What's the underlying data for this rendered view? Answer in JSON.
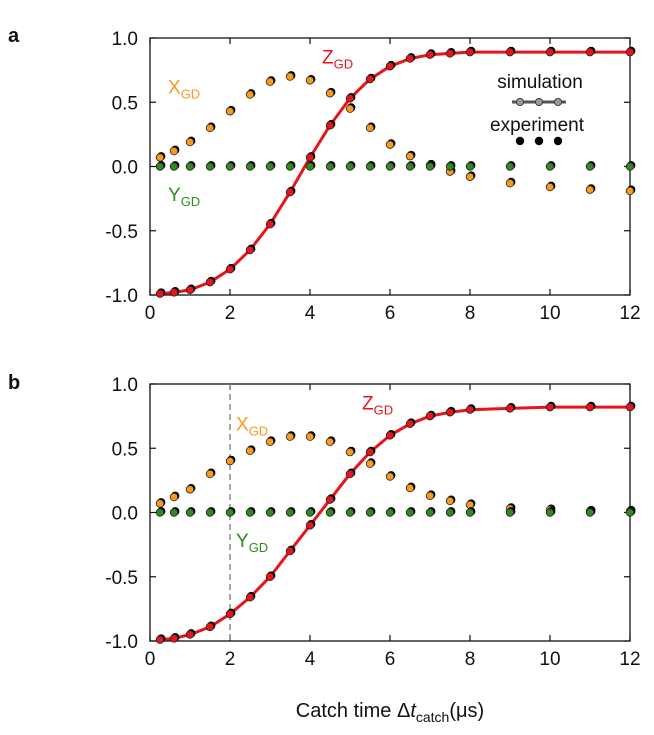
{
  "chart_data": [
    {
      "panel": "a",
      "type": "scatter",
      "xlim": [
        0,
        12
      ],
      "ylim": [
        -1.0,
        1.0
      ],
      "xticks": [
        0,
        2,
        4,
        6,
        8,
        10,
        12
      ],
      "xtick_labels": [
        "0",
        "2",
        "4",
        "6",
        "8",
        "10",
        "12"
      ],
      "yticks": [
        1.0,
        0.5,
        0.0,
        -0.5,
        -1.0
      ],
      "ytick_labels": [
        "1.0",
        "0.5",
        "0.0",
        "-0.5",
        "-1.0"
      ],
      "legend": {
        "placement": "top-right",
        "simulation_label": "simulation",
        "experiment_label": "experiment"
      },
      "series": [
        {
          "name": "Z",
          "subscript": "GD",
          "color": "#e8141c",
          "line": true,
          "x": [
            0.25,
            0.6,
            1.0,
            1.5,
            2.0,
            2.5,
            3.0,
            3.5,
            4.0,
            4.5,
            5.0,
            5.5,
            6.0,
            6.5,
            7.0,
            7.5,
            8.0,
            9.0,
            10.0,
            11.0,
            12.0
          ],
          "y": [
            -0.99,
            -0.98,
            -0.96,
            -0.9,
            -0.8,
            -0.65,
            -0.45,
            -0.2,
            0.07,
            0.32,
            0.53,
            0.68,
            0.78,
            0.84,
            0.87,
            0.88,
            0.89,
            0.89,
            0.89,
            0.89,
            0.89
          ]
        },
        {
          "name": "X",
          "subscript": "GD",
          "color": "#f79a1f",
          "line": false,
          "x": [
            0.25,
            0.6,
            1.0,
            1.5,
            2.0,
            2.5,
            3.0,
            3.5,
            4.0,
            4.5,
            5.0,
            5.5,
            6.0,
            6.5,
            7.0,
            7.5,
            8.0,
            9.0,
            10.0,
            11.0,
            12.0
          ],
          "y": [
            0.07,
            0.12,
            0.19,
            0.3,
            0.43,
            0.56,
            0.66,
            0.7,
            0.67,
            0.57,
            0.45,
            0.3,
            0.17,
            0.08,
            0.01,
            -0.04,
            -0.08,
            -0.13,
            -0.16,
            -0.18,
            -0.19
          ]
        },
        {
          "name": "Y",
          "subscript": "GD",
          "color": "#2e8b1e",
          "line": false,
          "x": [
            0.25,
            0.6,
            1.0,
            1.5,
            2.0,
            2.5,
            3.0,
            3.5,
            4.0,
            4.5,
            5.0,
            5.5,
            6.0,
            6.5,
            7.0,
            7.5,
            8.0,
            9.0,
            10.0,
            11.0,
            12.0
          ],
          "y": [
            0,
            0,
            0,
            0,
            0,
            0,
            0,
            0,
            0,
            0,
            0,
            0,
            0,
            0,
            0,
            0,
            0,
            0,
            0,
            0,
            0
          ]
        }
      ]
    },
    {
      "panel": "b",
      "type": "scatter",
      "xlim": [
        0,
        12
      ],
      "ylim": [
        -1.0,
        1.0
      ],
      "xticks": [
        0,
        2,
        4,
        6,
        8,
        10,
        12
      ],
      "xtick_labels": [
        "0",
        "2",
        "4",
        "6",
        "8",
        "10",
        "12"
      ],
      "yticks": [
        1.0,
        0.5,
        0.0,
        -0.5,
        -1.0
      ],
      "ytick_labels": [
        "1.0",
        "0.5",
        "0.0",
        "-0.5",
        "-1.0"
      ],
      "vline_x": 2,
      "series": [
        {
          "name": "Z",
          "subscript": "GD",
          "color": "#e8141c",
          "line": true,
          "x": [
            0.25,
            0.6,
            1.0,
            1.5,
            2.0,
            2.5,
            3.0,
            3.5,
            4.0,
            4.5,
            5.0,
            5.5,
            6.0,
            6.5,
            7.0,
            7.5,
            8.0,
            9.0,
            10.0,
            11.0,
            12.0
          ],
          "y": [
            -0.99,
            -0.98,
            -0.95,
            -0.89,
            -0.79,
            -0.66,
            -0.5,
            -0.3,
            -0.1,
            0.1,
            0.3,
            0.47,
            0.6,
            0.69,
            0.75,
            0.78,
            0.8,
            0.81,
            0.82,
            0.82,
            0.82
          ]
        },
        {
          "name": "X",
          "subscript": "GD",
          "color": "#f79a1f",
          "line": false,
          "x": [
            0.25,
            0.6,
            1.0,
            1.5,
            2.0,
            2.5,
            3.0,
            3.5,
            4.0,
            4.5,
            5.0,
            5.5,
            6.0,
            6.5,
            7.0,
            7.5,
            8.0,
            9.0,
            10.0,
            11.0,
            12.0
          ],
          "y": [
            0.07,
            0.12,
            0.18,
            0.3,
            0.4,
            0.48,
            0.55,
            0.59,
            0.59,
            0.55,
            0.47,
            0.38,
            0.28,
            0.19,
            0.13,
            0.09,
            0.06,
            0.03,
            0.02,
            0.01,
            0.01
          ]
        },
        {
          "name": "Y",
          "subscript": "GD",
          "color": "#2e8b1e",
          "line": false,
          "x": [
            0.25,
            0.6,
            1.0,
            1.5,
            2.0,
            2.5,
            3.0,
            3.5,
            4.0,
            4.5,
            5.0,
            5.5,
            6.0,
            6.5,
            7.0,
            7.5,
            8.0,
            9.0,
            10.0,
            11.0,
            12.0
          ],
          "y": [
            0,
            0,
            0,
            0,
            0,
            0,
            0,
            0,
            0,
            0,
            0,
            0,
            0,
            0,
            0,
            0,
            0,
            0,
            0,
            0,
            0
          ]
        }
      ]
    }
  ],
  "xlabel": {
    "prefix": "Catch time ",
    "delta": "Δ",
    "var": "t",
    "sub": "catch",
    "unit": "(μs)"
  },
  "colors": {
    "experiment": "#000000",
    "simulation_line": "#555555",
    "axis": "#111111",
    "vline": "#888888"
  }
}
